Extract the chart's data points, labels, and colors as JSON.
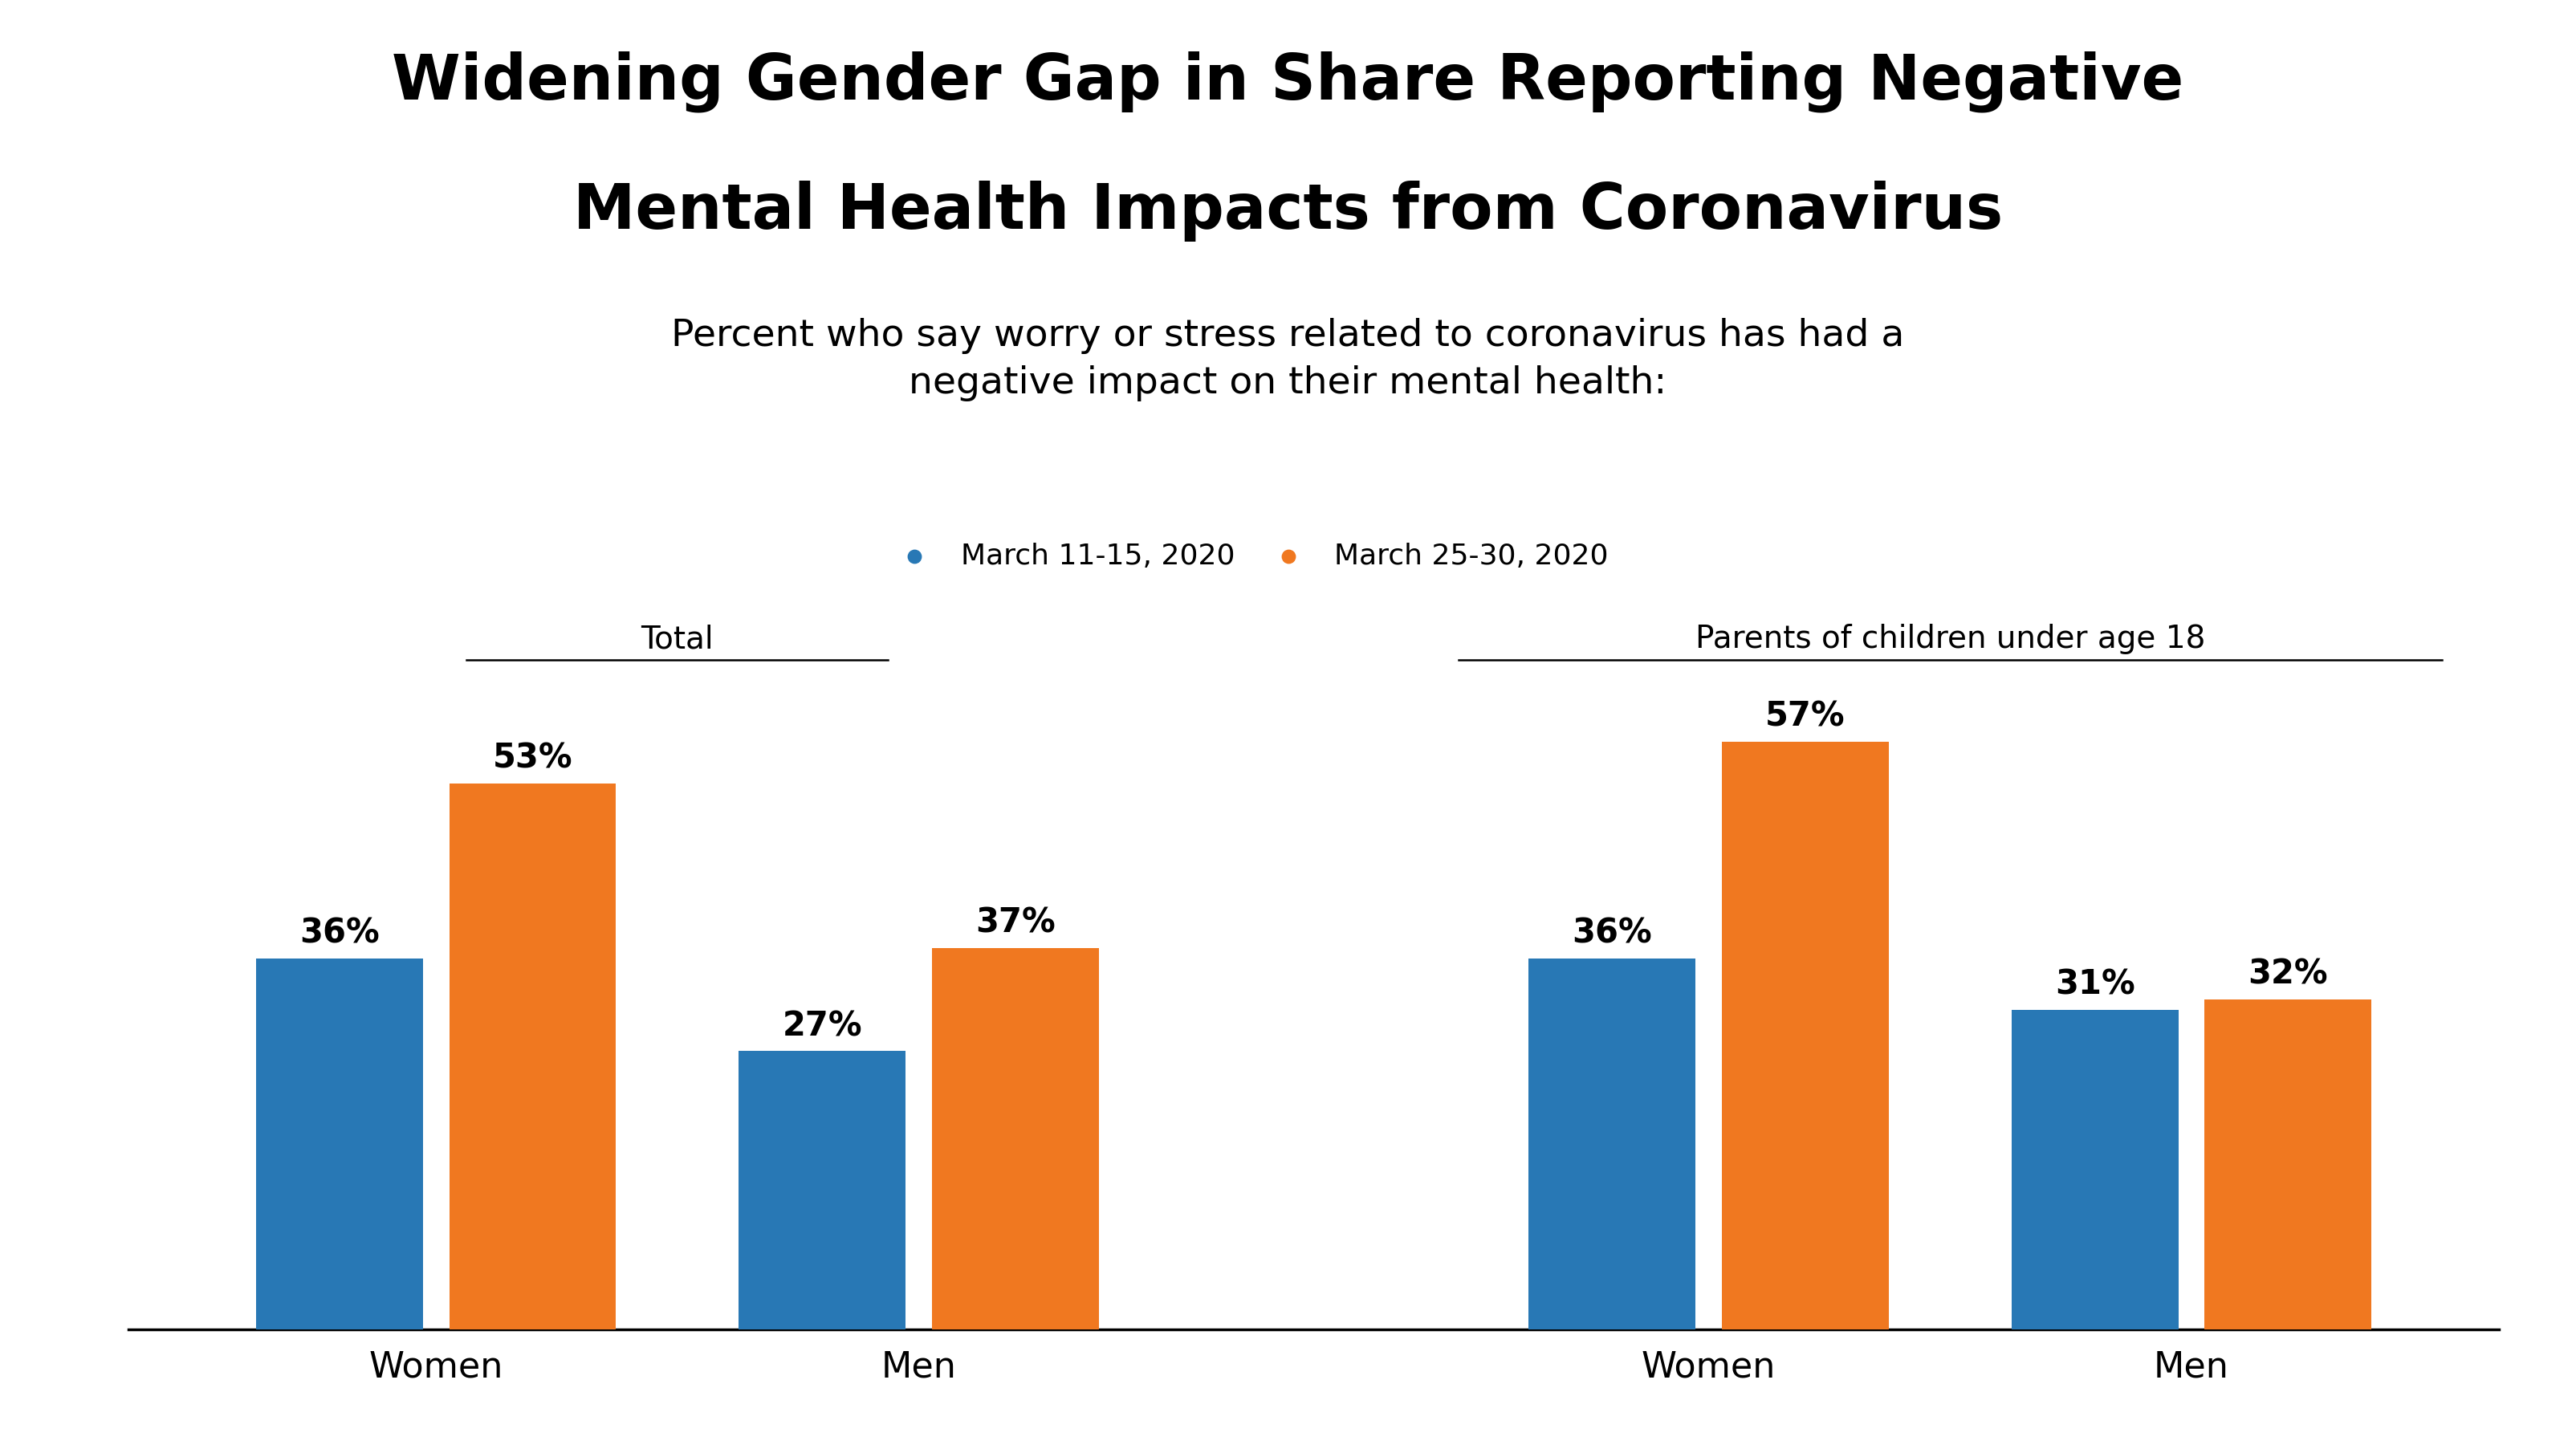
{
  "title_line1": "Widening Gender Gap in Share Reporting Negative",
  "title_line2": "Mental Health Impacts from Coronavirus",
  "subtitle": "Percent who say worry or stress related to coronavirus has had a\nnegative impact on their mental health:",
  "legend_labels": [
    "March 11-15, 2020",
    "March 25-30, 2020"
  ],
  "section_labels": [
    "Total",
    "Parents of children under age 18"
  ],
  "group_labels": [
    "Women",
    "Men",
    "Women",
    "Men"
  ],
  "blue_values": [
    36,
    27,
    36,
    31
  ],
  "orange_values": [
    53,
    37,
    57,
    32
  ],
  "bar_color_blue": "#2878b5",
  "bar_color_orange": "#f07820",
  "background_color": "#ffffff",
  "ylim": [
    0,
    68
  ],
  "bar_width": 0.38,
  "group_centers": [
    0,
    1.1,
    2.9,
    4.0
  ]
}
